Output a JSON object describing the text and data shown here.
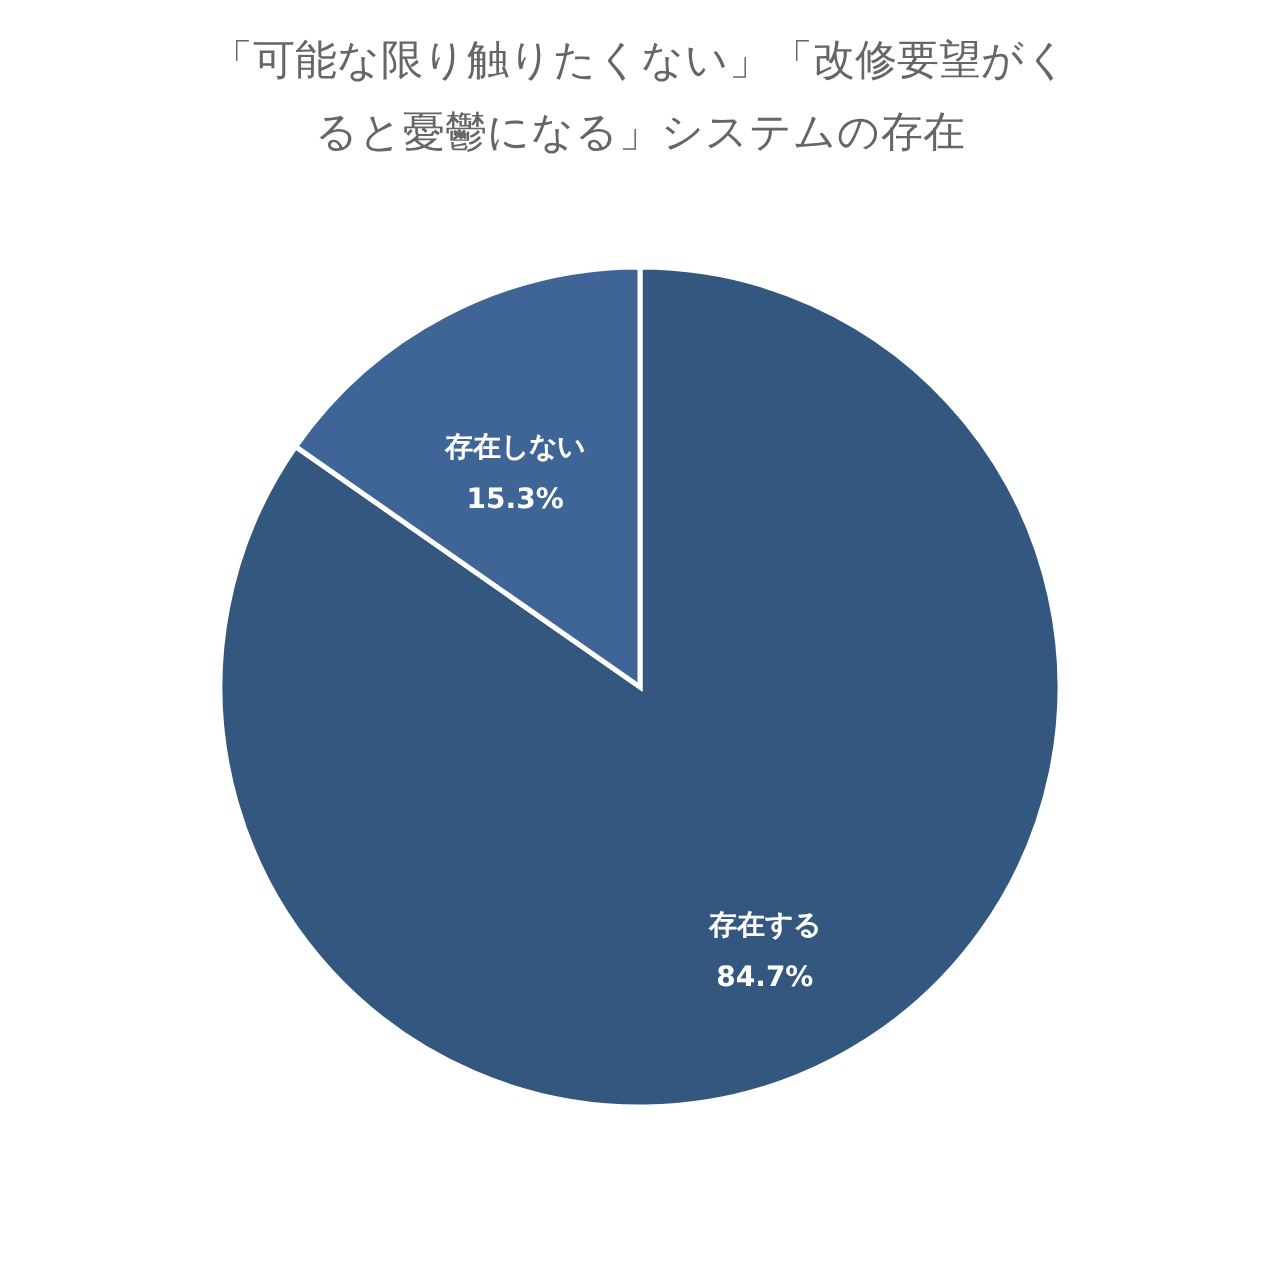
{
  "chart_data": {
    "type": "pie",
    "title": "「可能な限り触りたくない」「改修要望がくると憂鬱になる」システムの存在",
    "categories": [
      "存在する",
      "存在しない"
    ],
    "values": [
      84.7,
      15.3
    ],
    "value_labels": [
      "84.7%",
      "15.3%"
    ],
    "colors": [
      "#34577f",
      "#3e6595"
    ],
    "legend": false
  }
}
